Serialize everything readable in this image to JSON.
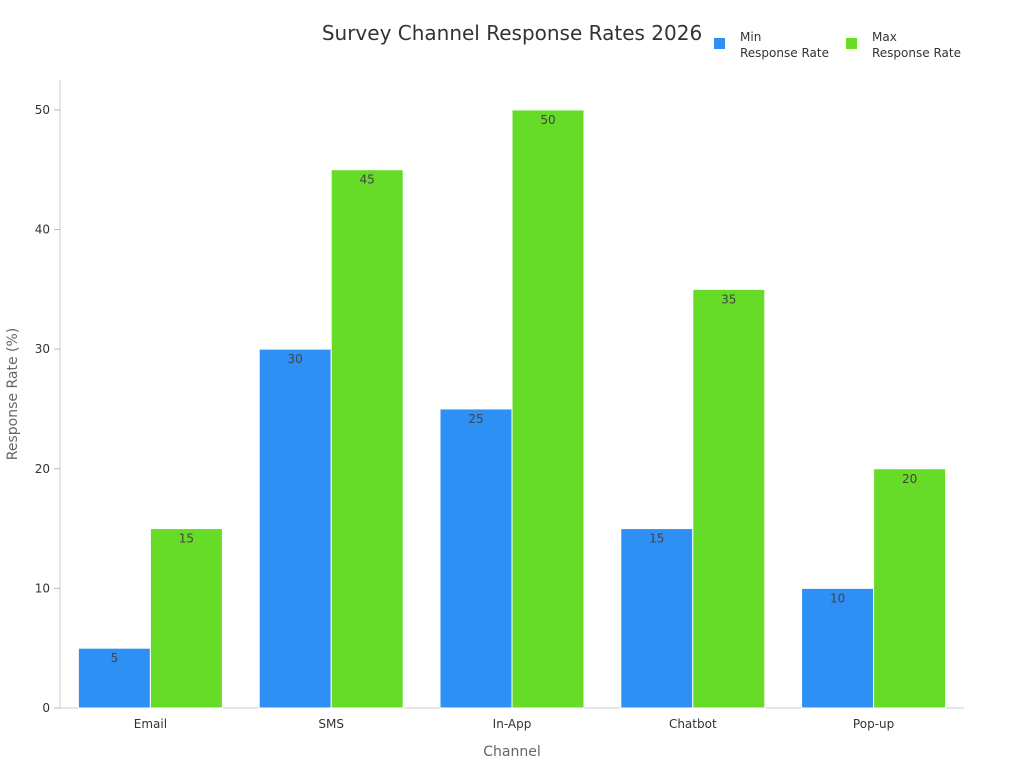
{
  "chart_data": {
    "type": "bar",
    "title": "Survey Channel Response Rates 2026",
    "xlabel": "Channel",
    "ylabel": "Response Rate (%)",
    "categories": [
      "Email",
      "SMS",
      "In-App",
      "Chatbot",
      "Pop-up"
    ],
    "series": [
      {
        "name": "Min Response Rate",
        "legend_lines": [
          "Min",
          "Response Rate"
        ],
        "color": "#2e90f5",
        "values": [
          5,
          30,
          25,
          15,
          10
        ]
      },
      {
        "name": "Max Response Rate",
        "legend_lines": [
          "Max",
          "Response Rate"
        ],
        "color": "#66db28",
        "values": [
          15,
          45,
          50,
          35,
          20
        ]
      }
    ],
    "ylim": [
      0,
      52.5
    ],
    "yticks": [
      0,
      10,
      20,
      30,
      40,
      50
    ],
    "grid": false,
    "legend_position": "top-right",
    "data_labels": true
  }
}
